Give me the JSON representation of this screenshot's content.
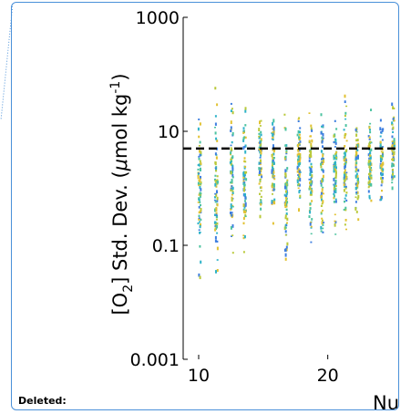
{
  "comment_label": "Deleted:",
  "colors": {
    "balloon_border": "#4a90d9",
    "threshold_line": "#000000",
    "points": [
      "#3f7fe0",
      "#2fb3c9",
      "#4cc3a0",
      "#b9c93a",
      "#e2c233"
    ]
  },
  "chart_data": {
    "type": "scatter",
    "title": "",
    "ylabel_parts": [
      "[O",
      "2",
      "] Std. Dev. (",
      "μ",
      "mol kg",
      "-1",
      ")"
    ],
    "xlabel": "Nu",
    "y_scale": "log",
    "ylim": [
      0.001,
      1000
    ],
    "xlim": [
      8.8,
      25.6
    ],
    "y_ticks": [
      {
        "value": 0.001,
        "label": "0.001"
      },
      {
        "value": 0.1,
        "label": "0.1"
      },
      {
        "value": 10,
        "label": "10"
      },
      {
        "value": 1000,
        "label": "1000"
      }
    ],
    "x_ticks": [
      {
        "value": 10,
        "label": "10"
      },
      {
        "value": 20,
        "label": "20"
      }
    ],
    "threshold": 5,
    "grid": false,
    "legend": "none",
    "columns": [
      {
        "x": 10,
        "ymin": 0.01,
        "ymax": 100
      },
      {
        "x": 11.3,
        "ymin": 0.007,
        "ymax": 100
      },
      {
        "x": 12.5,
        "ymin": 0.03,
        "ymax": 80
      },
      {
        "x": 13.5,
        "ymin": 0.05,
        "ymax": 50
      },
      {
        "x": 14.7,
        "ymin": 0.2,
        "ymax": 45
      },
      {
        "x": 15.7,
        "ymin": 0.15,
        "ymax": 40
      },
      {
        "x": 16.7,
        "ymin": 0.01,
        "ymax": 40
      },
      {
        "x": 17.7,
        "ymin": 0.3,
        "ymax": 45
      },
      {
        "x": 18.6,
        "ymin": 0.06,
        "ymax": 40
      },
      {
        "x": 19.5,
        "ymin": 0.08,
        "ymax": 35
      },
      {
        "x": 20.5,
        "ymin": 0.1,
        "ymax": 40
      },
      {
        "x": 21.3,
        "ymin": 0.07,
        "ymax": 80
      },
      {
        "x": 22.2,
        "ymin": 0.2,
        "ymax": 30
      },
      {
        "x": 23.2,
        "ymin": 0.3,
        "ymax": 40
      },
      {
        "x": 24.1,
        "ymin": 0.4,
        "ymax": 30
      },
      {
        "x": 25.0,
        "ymin": 0.5,
        "ymax": 45
      }
    ]
  }
}
